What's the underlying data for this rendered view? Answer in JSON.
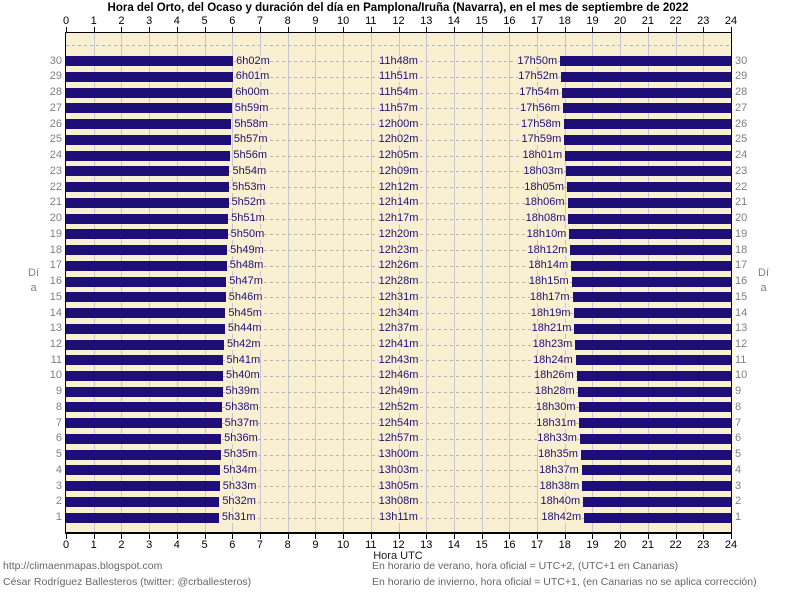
{
  "title": "Hora del Orto, del Ocaso y duración del día en Pamplona/Iruña (Navarra), en el mes de septiembre de 2022",
  "axis": {
    "x_label_bottom": "Hora UTC",
    "y_label_left": "Día",
    "y_label_right": "Día"
  },
  "footer": {
    "left_line1": "http://climaenmapas.blogspot.com",
    "left_line2": "César Rodríguez Ballesteros (twitter: @crballesteros)",
    "right_line1": "En horario de verano, hora oficial = UTC+2, (UTC+1 en Canarias)",
    "right_line2": "En horario de invierno, hora oficial = UTC+1, (en Canarias no se aplica corrección)"
  },
  "colors": {
    "night_bar": "#1e0e78",
    "daylight_bg": "#f8f0d0",
    "time_label_text": "#1e0e78",
    "grid_vertical": "#c6c6d2",
    "grid_dashed": "#b5b5b5",
    "day_number_text": "#808080",
    "axis_text": "#000000"
  },
  "chart_data": {
    "type": "bar",
    "orientation": "horizontal",
    "title": "Hora del Orto, del Ocaso y duración del día en Pamplona/Iruña (Navarra), en el mes de septiembre de 2022",
    "xlabel": "Hora UTC",
    "ylabel": "Día",
    "xlim": [
      0,
      24
    ],
    "ylim": [
      1,
      30
    ],
    "x_ticks": [
      0,
      1,
      2,
      3,
      4,
      5,
      6,
      7,
      8,
      9,
      10,
      11,
      12,
      13,
      14,
      15,
      16,
      17,
      18,
      19,
      20,
      21,
      22,
      23,
      24
    ],
    "grid": true,
    "days_order": "top-to-bottom",
    "days": [
      {
        "day": 30,
        "orto": "6h02m",
        "duracion": "11h48m",
        "ocaso": "17h50m"
      },
      {
        "day": 29,
        "orto": "6h01m",
        "duracion": "11h51m",
        "ocaso": "17h52m"
      },
      {
        "day": 28,
        "orto": "6h00m",
        "duracion": "11h54m",
        "ocaso": "17h54m"
      },
      {
        "day": 27,
        "orto": "5h59m",
        "duracion": "11h57m",
        "ocaso": "17h56m"
      },
      {
        "day": 26,
        "orto": "5h58m",
        "duracion": "12h00m",
        "ocaso": "17h58m"
      },
      {
        "day": 25,
        "orto": "5h57m",
        "duracion": "12h02m",
        "ocaso": "17h59m"
      },
      {
        "day": 24,
        "orto": "5h56m",
        "duracion": "12h05m",
        "ocaso": "18h01m"
      },
      {
        "day": 23,
        "orto": "5h54m",
        "duracion": "12h09m",
        "ocaso": "18h03m"
      },
      {
        "day": 22,
        "orto": "5h53m",
        "duracion": "12h12m",
        "ocaso": "18h05m"
      },
      {
        "day": 21,
        "orto": "5h52m",
        "duracion": "12h14m",
        "ocaso": "18h06m"
      },
      {
        "day": 20,
        "orto": "5h51m",
        "duracion": "12h17m",
        "ocaso": "18h08m"
      },
      {
        "day": 19,
        "orto": "5h50m",
        "duracion": "12h20m",
        "ocaso": "18h10m"
      },
      {
        "day": 18,
        "orto": "5h49m",
        "duracion": "12h23m",
        "ocaso": "18h12m"
      },
      {
        "day": 17,
        "orto": "5h48m",
        "duracion": "12h26m",
        "ocaso": "18h14m"
      },
      {
        "day": 16,
        "orto": "5h47m",
        "duracion": "12h28m",
        "ocaso": "18h15m"
      },
      {
        "day": 15,
        "orto": "5h46m",
        "duracion": "12h31m",
        "ocaso": "18h17m"
      },
      {
        "day": 14,
        "orto": "5h45m",
        "duracion": "12h34m",
        "ocaso": "18h19m"
      },
      {
        "day": 13,
        "orto": "5h44m",
        "duracion": "12h37m",
        "ocaso": "18h21m"
      },
      {
        "day": 12,
        "orto": "5h42m",
        "duracion": "12h41m",
        "ocaso": "18h23m"
      },
      {
        "day": 11,
        "orto": "5h41m",
        "duracion": "12h43m",
        "ocaso": "18h24m"
      },
      {
        "day": 10,
        "orto": "5h40m",
        "duracion": "12h46m",
        "ocaso": "18h26m"
      },
      {
        "day": 9,
        "orto": "5h39m",
        "duracion": "12h49m",
        "ocaso": "18h28m"
      },
      {
        "day": 8,
        "orto": "5h38m",
        "duracion": "12h52m",
        "ocaso": "18h30m"
      },
      {
        "day": 7,
        "orto": "5h37m",
        "duracion": "12h54m",
        "ocaso": "18h31m"
      },
      {
        "day": 6,
        "orto": "5h36m",
        "duracion": "12h57m",
        "ocaso": "18h33m"
      },
      {
        "day": 5,
        "orto": "5h35m",
        "duracion": "13h00m",
        "ocaso": "18h35m"
      },
      {
        "day": 4,
        "orto": "5h34m",
        "duracion": "13h03m",
        "ocaso": "18h37m"
      },
      {
        "day": 3,
        "orto": "5h33m",
        "duracion": "13h05m",
        "ocaso": "18h38m"
      },
      {
        "day": 2,
        "orto": "5h32m",
        "duracion": "13h08m",
        "ocaso": "18h40m"
      },
      {
        "day": 1,
        "orto": "5h31m",
        "duracion": "13h11m",
        "ocaso": "18h42m"
      }
    ]
  }
}
